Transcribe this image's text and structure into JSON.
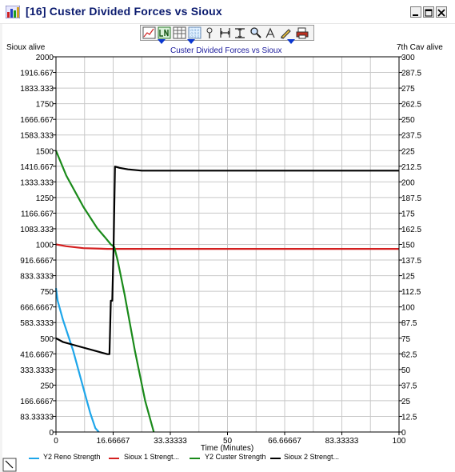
{
  "window": {
    "title": "[16]  Custer Divided Forces vs Sioux",
    "title_color": "#0a1a6e"
  },
  "toolbar": {
    "buttons": [
      "chart-type-icon",
      "line-icon",
      "table-icon",
      "grid-icon",
      "pin-icon",
      "fit-horizontal-icon",
      "fit-vertical-icon",
      "zoom-icon",
      "pointer-icon",
      "pencil-icon",
      "print-icon"
    ]
  },
  "chart_data": {
    "type": "line",
    "title": "Custer Divided Forces vs Sioux",
    "xlabel": "Time (Minutes)",
    "ylabel_left": "Sioux alive",
    "ylabel_right": "7th Cav alive",
    "xlim": [
      0,
      100
    ],
    "ylim_left": [
      0,
      2000
    ],
    "ylim_right": [
      0,
      300
    ],
    "x_ticks": [
      "0",
      "16.66667",
      "33.33333",
      "50",
      "66.66667",
      "83.33333",
      "100"
    ],
    "y_left_ticks": [
      "0",
      "83.33333",
      "166.6667",
      "250",
      "333.3333",
      "416.6667",
      "500",
      "583.3333",
      "666.6667",
      "750",
      "833.3333",
      "916.6667",
      "1000",
      "1083.333",
      "1166.667",
      "1250",
      "1333.333",
      "1416.667",
      "1500",
      "1583.333",
      "1666.667",
      "1750",
      "1833.333",
      "1916.667",
      "2000"
    ],
    "y_right_ticks": [
      "0",
      "12.5",
      "25",
      "37.5",
      "50",
      "62.5",
      "75",
      "87.5",
      "100",
      "112.5",
      "125",
      "137.5",
      "150",
      "162.5",
      "175",
      "187.5",
      "200",
      "212.5",
      "225",
      "237.5",
      "250",
      "262.5",
      "275",
      "287.5",
      "300"
    ],
    "grid": true,
    "legend_position": "bottom",
    "series": [
      {
        "name": "Y2 Reno Strength",
        "axis": "right",
        "color": "#1ea6ea",
        "x": [
          0,
          0.5,
          2,
          5,
          8,
          10,
          11.5,
          12.5
        ],
        "y": [
          115,
          105,
          90,
          65,
          35,
          15,
          3,
          0
        ]
      },
      {
        "name": "Sioux 1 Strengt...",
        "axis": "left",
        "color": "#d42020",
        "x": [
          0,
          3,
          8,
          15,
          100
        ],
        "y": [
          1000,
          990,
          980,
          976,
          976
        ]
      },
      {
        "name": "Y2 Custer Strength",
        "axis": "right",
        "color": "#1a8a1a",
        "x": [
          0,
          3,
          8,
          12,
          14.5,
          16,
          17,
          18,
          20,
          23,
          26,
          28.5
        ],
        "y": [
          225,
          205,
          180,
          163,
          155,
          150,
          148,
          137,
          110,
          65,
          25,
          0
        ]
      },
      {
        "name": "Sioux 2 Strengt...",
        "axis": "left",
        "color": "#000000",
        "x": [
          0,
          2,
          5,
          8,
          12,
          15,
          15.6,
          16,
          16.4,
          16.8,
          17.2,
          18.5,
          21,
          25,
          100
        ],
        "y": [
          500,
          480,
          465,
          450,
          430,
          415,
          415,
          700,
          700,
          1000,
          1415,
          1408,
          1400,
          1393,
          1393
        ]
      }
    ]
  }
}
